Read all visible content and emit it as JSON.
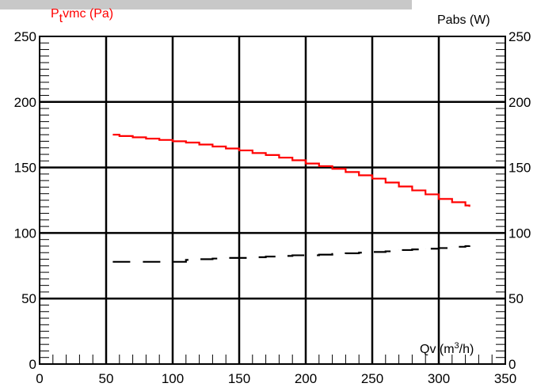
{
  "chart_data": {
    "type": "line",
    "title": "",
    "left_axis": {
      "label_main": "P",
      "label_sub": "t",
      "label_rest": "vmc (Pa)",
      "color": "#ff0000",
      "ylim": [
        0,
        250
      ],
      "ticks": [
        "0",
        "50",
        "100",
        "150",
        "200",
        "250"
      ]
    },
    "right_axis": {
      "label": "Pabs (W)",
      "ylim": [
        0,
        250
      ],
      "ticks": [
        "0",
        "50",
        "100",
        "150",
        "200",
        "250"
      ]
    },
    "x_axis": {
      "label_main": "Qv (m",
      "label_sup": "3",
      "label_rest": "/h)",
      "xlim": [
        0,
        350
      ],
      "ticks": [
        "0",
        "50",
        "100",
        "150",
        "200",
        "250",
        "300",
        "350"
      ]
    },
    "grid": true,
    "series": [
      {
        "axis": "left",
        "color": "#ff0000",
        "style": "solid",
        "x": [
          55,
          60,
          70,
          80,
          90,
          100,
          110,
          120,
          130,
          140,
          150,
          160,
          170,
          180,
          190,
          200,
          210,
          220,
          230,
          240,
          250,
          260,
          270,
          280,
          290,
          300,
          310,
          320,
          323
        ],
        "y": [
          175,
          174,
          173,
          172,
          171,
          170,
          169,
          167.5,
          166,
          164.5,
          163,
          161,
          159.5,
          157.5,
          155.5,
          153,
          151,
          149,
          146.5,
          144,
          141.5,
          138.5,
          135.5,
          132.5,
          129.5,
          126,
          123.5,
          121,
          120
        ]
      },
      {
        "axis": "right",
        "color": "#000000",
        "style": "dashed",
        "x": [
          55,
          70,
          80,
          90,
          100,
          110,
          120,
          130,
          140,
          150,
          160,
          170,
          180,
          190,
          200,
          210,
          220,
          230,
          240,
          250,
          260,
          270,
          280,
          290,
          300,
          310,
          320,
          323
        ],
        "y": [
          78,
          78,
          78,
          78,
          78,
          79.5,
          80,
          80.5,
          81,
          81,
          81.5,
          82,
          82.5,
          83,
          83,
          83.5,
          84,
          84.5,
          85,
          85.5,
          86,
          87,
          87.5,
          88,
          88.5,
          89.5,
          90,
          90.5
        ]
      }
    ]
  }
}
